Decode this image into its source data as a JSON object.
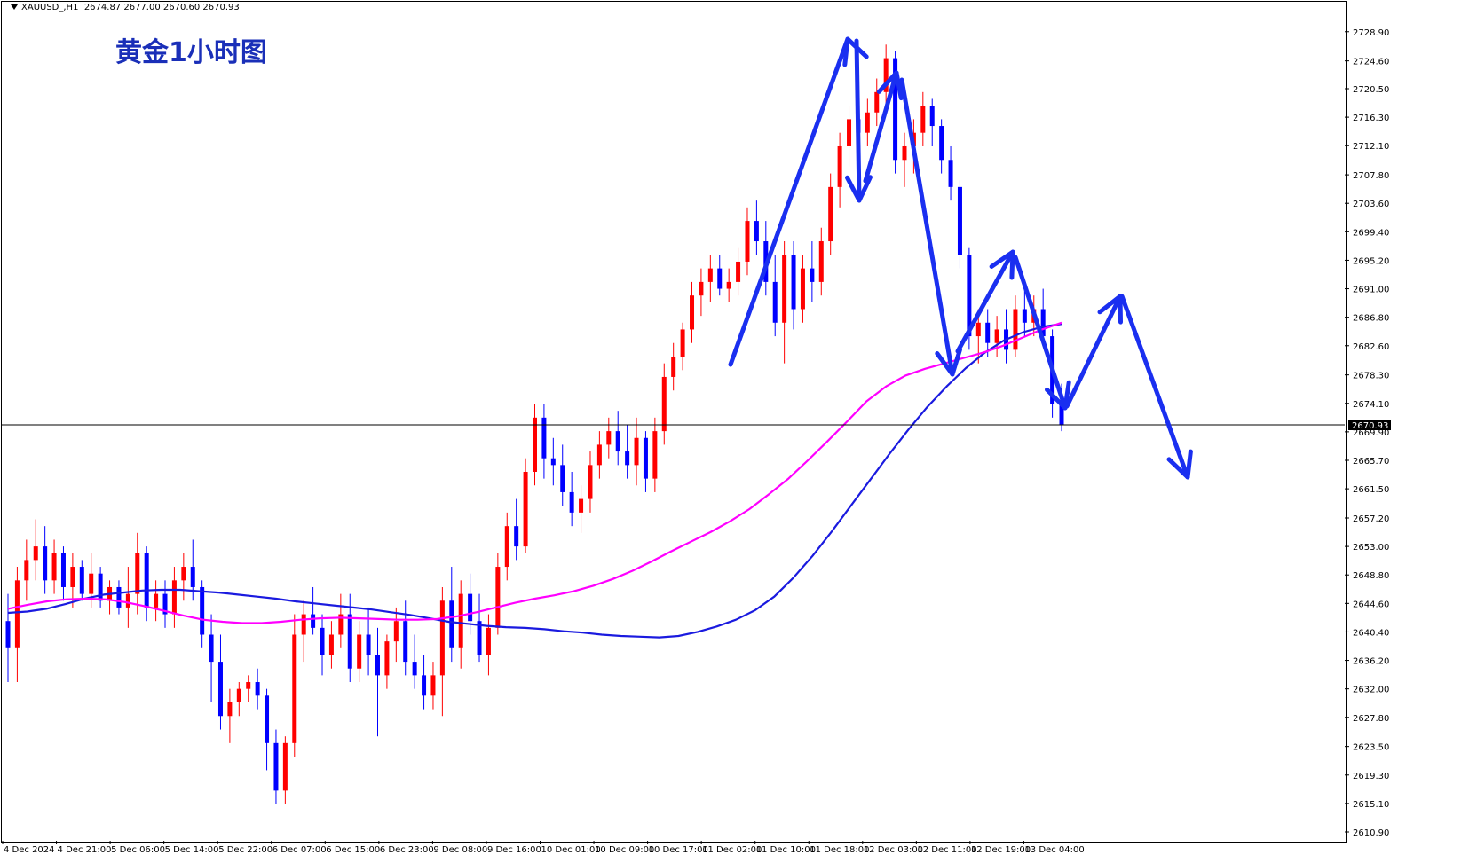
{
  "header": {
    "symbol": "XAUUSD_,H1",
    "ohlc": "2674.87 2677.00 2670.60 2670.93"
  },
  "title": "黄金1小时图",
  "colors": {
    "bull_candle": "#ff0000",
    "bear_candle": "#0000ff",
    "ma_fast": "#1a1adf",
    "ma_slow": "#ff00ff",
    "arrows": "#1a2ff0",
    "price_line": "#000000",
    "title": "#1a2fb8"
  },
  "chart_data": {
    "type": "candlestick",
    "symbol": "XAUUSD_",
    "timeframe": "H1",
    "current_price": 2670.93,
    "current_price_label": "2670.93",
    "ylim": [
      2610.9,
      2730.7
    ],
    "y_ticks": [
      "2728.90",
      "2724.60",
      "2720.50",
      "2716.30",
      "2712.10",
      "2707.80",
      "2703.60",
      "2699.40",
      "2695.20",
      "2691.00",
      "2686.80",
      "2682.60",
      "2678.30",
      "2674.10",
      "2669.90",
      "2665.70",
      "2661.50",
      "2657.20",
      "2653.00",
      "2648.80",
      "2644.60",
      "2640.40",
      "2636.20",
      "2632.00",
      "2627.80",
      "2623.50",
      "2619.30",
      "2615.10",
      "2610.90"
    ],
    "x_labels": [
      "4 Dec 2024",
      "4 Dec 21:00",
      "5 Dec 06:00",
      "5 Dec 14:00",
      "5 Dec 22:00",
      "6 Dec 07:00",
      "6 Dec 15:00",
      "6 Dec 23:00",
      "9 Dec 08:00",
      "9 Dec 16:00",
      "10 Dec 01:00",
      "10 Dec 09:00",
      "10 Dec 17:00",
      "11 Dec 02:00",
      "11 Dec 10:00",
      "11 Dec 18:00",
      "12 Dec 03:00",
      "12 Dec 11:00",
      "12 Dec 19:00",
      "13 Dec 04:00"
    ],
    "candles": [
      [
        2642,
        2646,
        2633,
        2638
      ],
      [
        2638,
        2650,
        2633,
        2648
      ],
      [
        2648,
        2654,
        2645,
        2651
      ],
      [
        2651,
        2657,
        2648,
        2653
      ],
      [
        2653,
        2656,
        2646,
        2648
      ],
      [
        2648,
        2654,
        2646,
        2652
      ],
      [
        2652,
        2653,
        2645,
        2647
      ],
      [
        2647,
        2652,
        2644,
        2650
      ],
      [
        2650,
        2651,
        2645,
        2646
      ],
      [
        2646,
        2652,
        2644,
        2649
      ],
      [
        2649,
        2650,
        2644,
        2645
      ],
      [
        2645,
        2648,
        2643,
        2647
      ],
      [
        2647,
        2648,
        2643,
        2644
      ],
      [
        2644,
        2650,
        2641,
        2646
      ],
      [
        2646,
        2655,
        2643,
        2652
      ],
      [
        2652,
        2653,
        2642,
        2644
      ],
      [
        2644,
        2648,
        2642,
        2646
      ],
      [
        2646,
        2648,
        2641,
        2643
      ],
      [
        2643,
        2650,
        2641,
        2648
      ],
      [
        2648,
        2652,
        2645,
        2650
      ],
      [
        2650,
        2654,
        2645,
        2647
      ],
      [
        2647,
        2648,
        2638,
        2640
      ],
      [
        2640,
        2643,
        2630,
        2636
      ],
      [
        2636,
        2640,
        2626,
        2628
      ],
      [
        2628,
        2632,
        2624,
        2630
      ],
      [
        2630,
        2633,
        2628,
        2632
      ],
      [
        2632,
        2634,
        2630,
        2633
      ],
      [
        2633,
        2635,
        2629,
        2631
      ],
      [
        2631,
        2632,
        2620,
        2624
      ],
      [
        2624,
        2626,
        2615,
        2617
      ],
      [
        2617,
        2625,
        2615,
        2624
      ],
      [
        2624,
        2643,
        2622,
        2640
      ],
      [
        2640,
        2645,
        2636,
        2643
      ],
      [
        2643,
        2647,
        2640,
        2641
      ],
      [
        2641,
        2643,
        2634,
        2637
      ],
      [
        2637,
        2642,
        2635,
        2640
      ],
      [
        2640,
        2646,
        2638,
        2643
      ],
      [
        2643,
        2646,
        2633,
        2635
      ],
      [
        2635,
        2642,
        2633,
        2640
      ],
      [
        2640,
        2644,
        2634,
        2637
      ],
      [
        2637,
        2641,
        2625,
        2634
      ],
      [
        2634,
        2640,
        2632,
        2639
      ],
      [
        2639,
        2644,
        2636,
        2642
      ],
      [
        2642,
        2645,
        2634,
        2636
      ],
      [
        2636,
        2640,
        2632,
        2634
      ],
      [
        2634,
        2637,
        2629,
        2631
      ],
      [
        2631,
        2636,
        2629,
        2634
      ],
      [
        2634,
        2647,
        2628,
        2645
      ],
      [
        2645,
        2650,
        2636,
        2638
      ],
      [
        2638,
        2648,
        2635,
        2646
      ],
      [
        2646,
        2649,
        2640,
        2642
      ],
      [
        2642,
        2646,
        2636,
        2637
      ],
      [
        2637,
        2643,
        2634,
        2641
      ],
      [
        2641,
        2652,
        2640,
        2650
      ],
      [
        2650,
        2658,
        2648,
        2656
      ],
      [
        2656,
        2660,
        2651,
        2653
      ],
      [
        2653,
        2666,
        2652,
        2664
      ],
      [
        2664,
        2674,
        2662,
        2672
      ],
      [
        2672,
        2674,
        2663,
        2666
      ],
      [
        2666,
        2669,
        2662,
        2665
      ],
      [
        2665,
        2668,
        2659,
        2661
      ],
      [
        2661,
        2664,
        2656,
        2658
      ],
      [
        2658,
        2662,
        2655,
        2660
      ],
      [
        2660,
        2667,
        2658,
        2665
      ],
      [
        2665,
        2670,
        2663,
        2668
      ],
      [
        2668,
        2672,
        2666,
        2670
      ],
      [
        2670,
        2673,
        2665,
        2667
      ],
      [
        2667,
        2671,
        2663,
        2665
      ],
      [
        2665,
        2672,
        2662,
        2669
      ],
      [
        2669,
        2670,
        2661,
        2663
      ],
      [
        2663,
        2672,
        2661,
        2670
      ],
      [
        2670,
        2680,
        2668,
        2678
      ],
      [
        2678,
        2683,
        2676,
        2681
      ],
      [
        2681,
        2686,
        2679,
        2685
      ],
      [
        2685,
        2692,
        2683,
        2690
      ],
      [
        2690,
        2694,
        2687,
        2692
      ],
      [
        2692,
        2696,
        2689,
        2694
      ],
      [
        2694,
        2696,
        2690,
        2691
      ],
      [
        2691,
        2694,
        2689,
        2692
      ],
      [
        2692,
        2697,
        2690,
        2695
      ],
      [
        2695,
        2703,
        2693,
        2701
      ],
      [
        2701,
        2704,
        2696,
        2698
      ],
      [
        2698,
        2701,
        2690,
        2692
      ],
      [
        2692,
        2696,
        2684,
        2686
      ],
      [
        2686,
        2698,
        2680,
        2696
      ],
      [
        2696,
        2698,
        2685,
        2688
      ],
      [
        2688,
        2696,
        2686,
        2694
      ],
      [
        2694,
        2698,
        2689,
        2692
      ],
      [
        2692,
        2700,
        2690,
        2698
      ],
      [
        2698,
        2708,
        2696,
        2706
      ],
      [
        2706,
        2714,
        2703,
        2712
      ],
      [
        2712,
        2718,
        2709,
        2716
      ],
      [
        2716,
        2720,
        2712,
        2714
      ],
      [
        2714,
        2719,
        2712,
        2717
      ],
      [
        2717,
        2722,
        2715,
        2720
      ],
      [
        2720,
        2727,
        2718,
        2725
      ],
      [
        2725,
        2726,
        2708,
        2710
      ],
      [
        2710,
        2714,
        2706,
        2712
      ],
      [
        2712,
        2716,
        2708,
        2714
      ],
      [
        2714,
        2720,
        2712,
        2718
      ],
      [
        2718,
        2719,
        2712,
        2715
      ],
      [
        2715,
        2716,
        2708,
        2710
      ],
      [
        2710,
        2712,
        2704,
        2706
      ],
      [
        2706,
        2707,
        2694,
        2696
      ],
      [
        2696,
        2697,
        2682,
        2684
      ],
      [
        2684,
        2688,
        2680,
        2686
      ],
      [
        2686,
        2688,
        2681,
        2683
      ],
      [
        2683,
        2687,
        2681,
        2685
      ],
      [
        2685,
        2688,
        2680,
        2682
      ],
      [
        2682,
        2690,
        2681,
        2688
      ],
      [
        2688,
        2691,
        2684,
        2686
      ],
      [
        2686,
        2690,
        2684,
        2688
      ],
      [
        2688,
        2691,
        2683,
        2684
      ],
      [
        2684,
        2685,
        2672,
        2674
      ],
      [
        2674,
        2677,
        2670,
        2671
      ]
    ],
    "series": [
      {
        "values": [
          2643.2,
          2643.4,
          2643.8,
          2644.5,
          2645.3,
          2645.9,
          2646.2,
          2646.5,
          2646.6,
          2646.6,
          2646.4,
          2646.2,
          2645.9,
          2645.6,
          2645.3,
          2644.9,
          2644.6,
          2644.3,
          2644.0,
          2643.7,
          2643.3,
          2642.9,
          2642.4,
          2641.9,
          2641.6,
          2641.3,
          2641.1,
          2641.0,
          2640.8,
          2640.5,
          2640.3,
          2640.0,
          2639.8,
          2639.7,
          2639.6,
          2639.8,
          2640.4,
          2641.2,
          2642.2,
          2643.6,
          2645.6,
          2648.4,
          2651.6,
          2655.2,
          2659.0,
          2662.8,
          2666.6,
          2670.2,
          2673.6,
          2676.6,
          2679.3,
          2681.6,
          2683.4,
          2684.6,
          2685.4,
          2685.8
        ]
      },
      {
        "values": [
          2643.8,
          2644.4,
          2644.9,
          2645.2,
          2645.3,
          2645.2,
          2644.8,
          2644.2,
          2643.5,
          2642.8,
          2642.2,
          2641.9,
          2641.7,
          2641.7,
          2641.9,
          2642.2,
          2642.4,
          2642.5,
          2642.4,
          2642.3,
          2642.2,
          2642.2,
          2642.3,
          2642.7,
          2643.3,
          2644.0,
          2644.7,
          2645.3,
          2645.8,
          2646.4,
          2647.2,
          2648.2,
          2649.4,
          2650.8,
          2652.3,
          2653.7,
          2655.1,
          2656.7,
          2658.5,
          2660.7,
          2663.0,
          2665.7,
          2668.5,
          2671.4,
          2674.4,
          2676.6,
          2678.2,
          2679.2,
          2680.0,
          2680.8,
          2681.6,
          2682.6,
          2683.8,
          2685.0,
          2686.0
        ]
      }
    ]
  }
}
